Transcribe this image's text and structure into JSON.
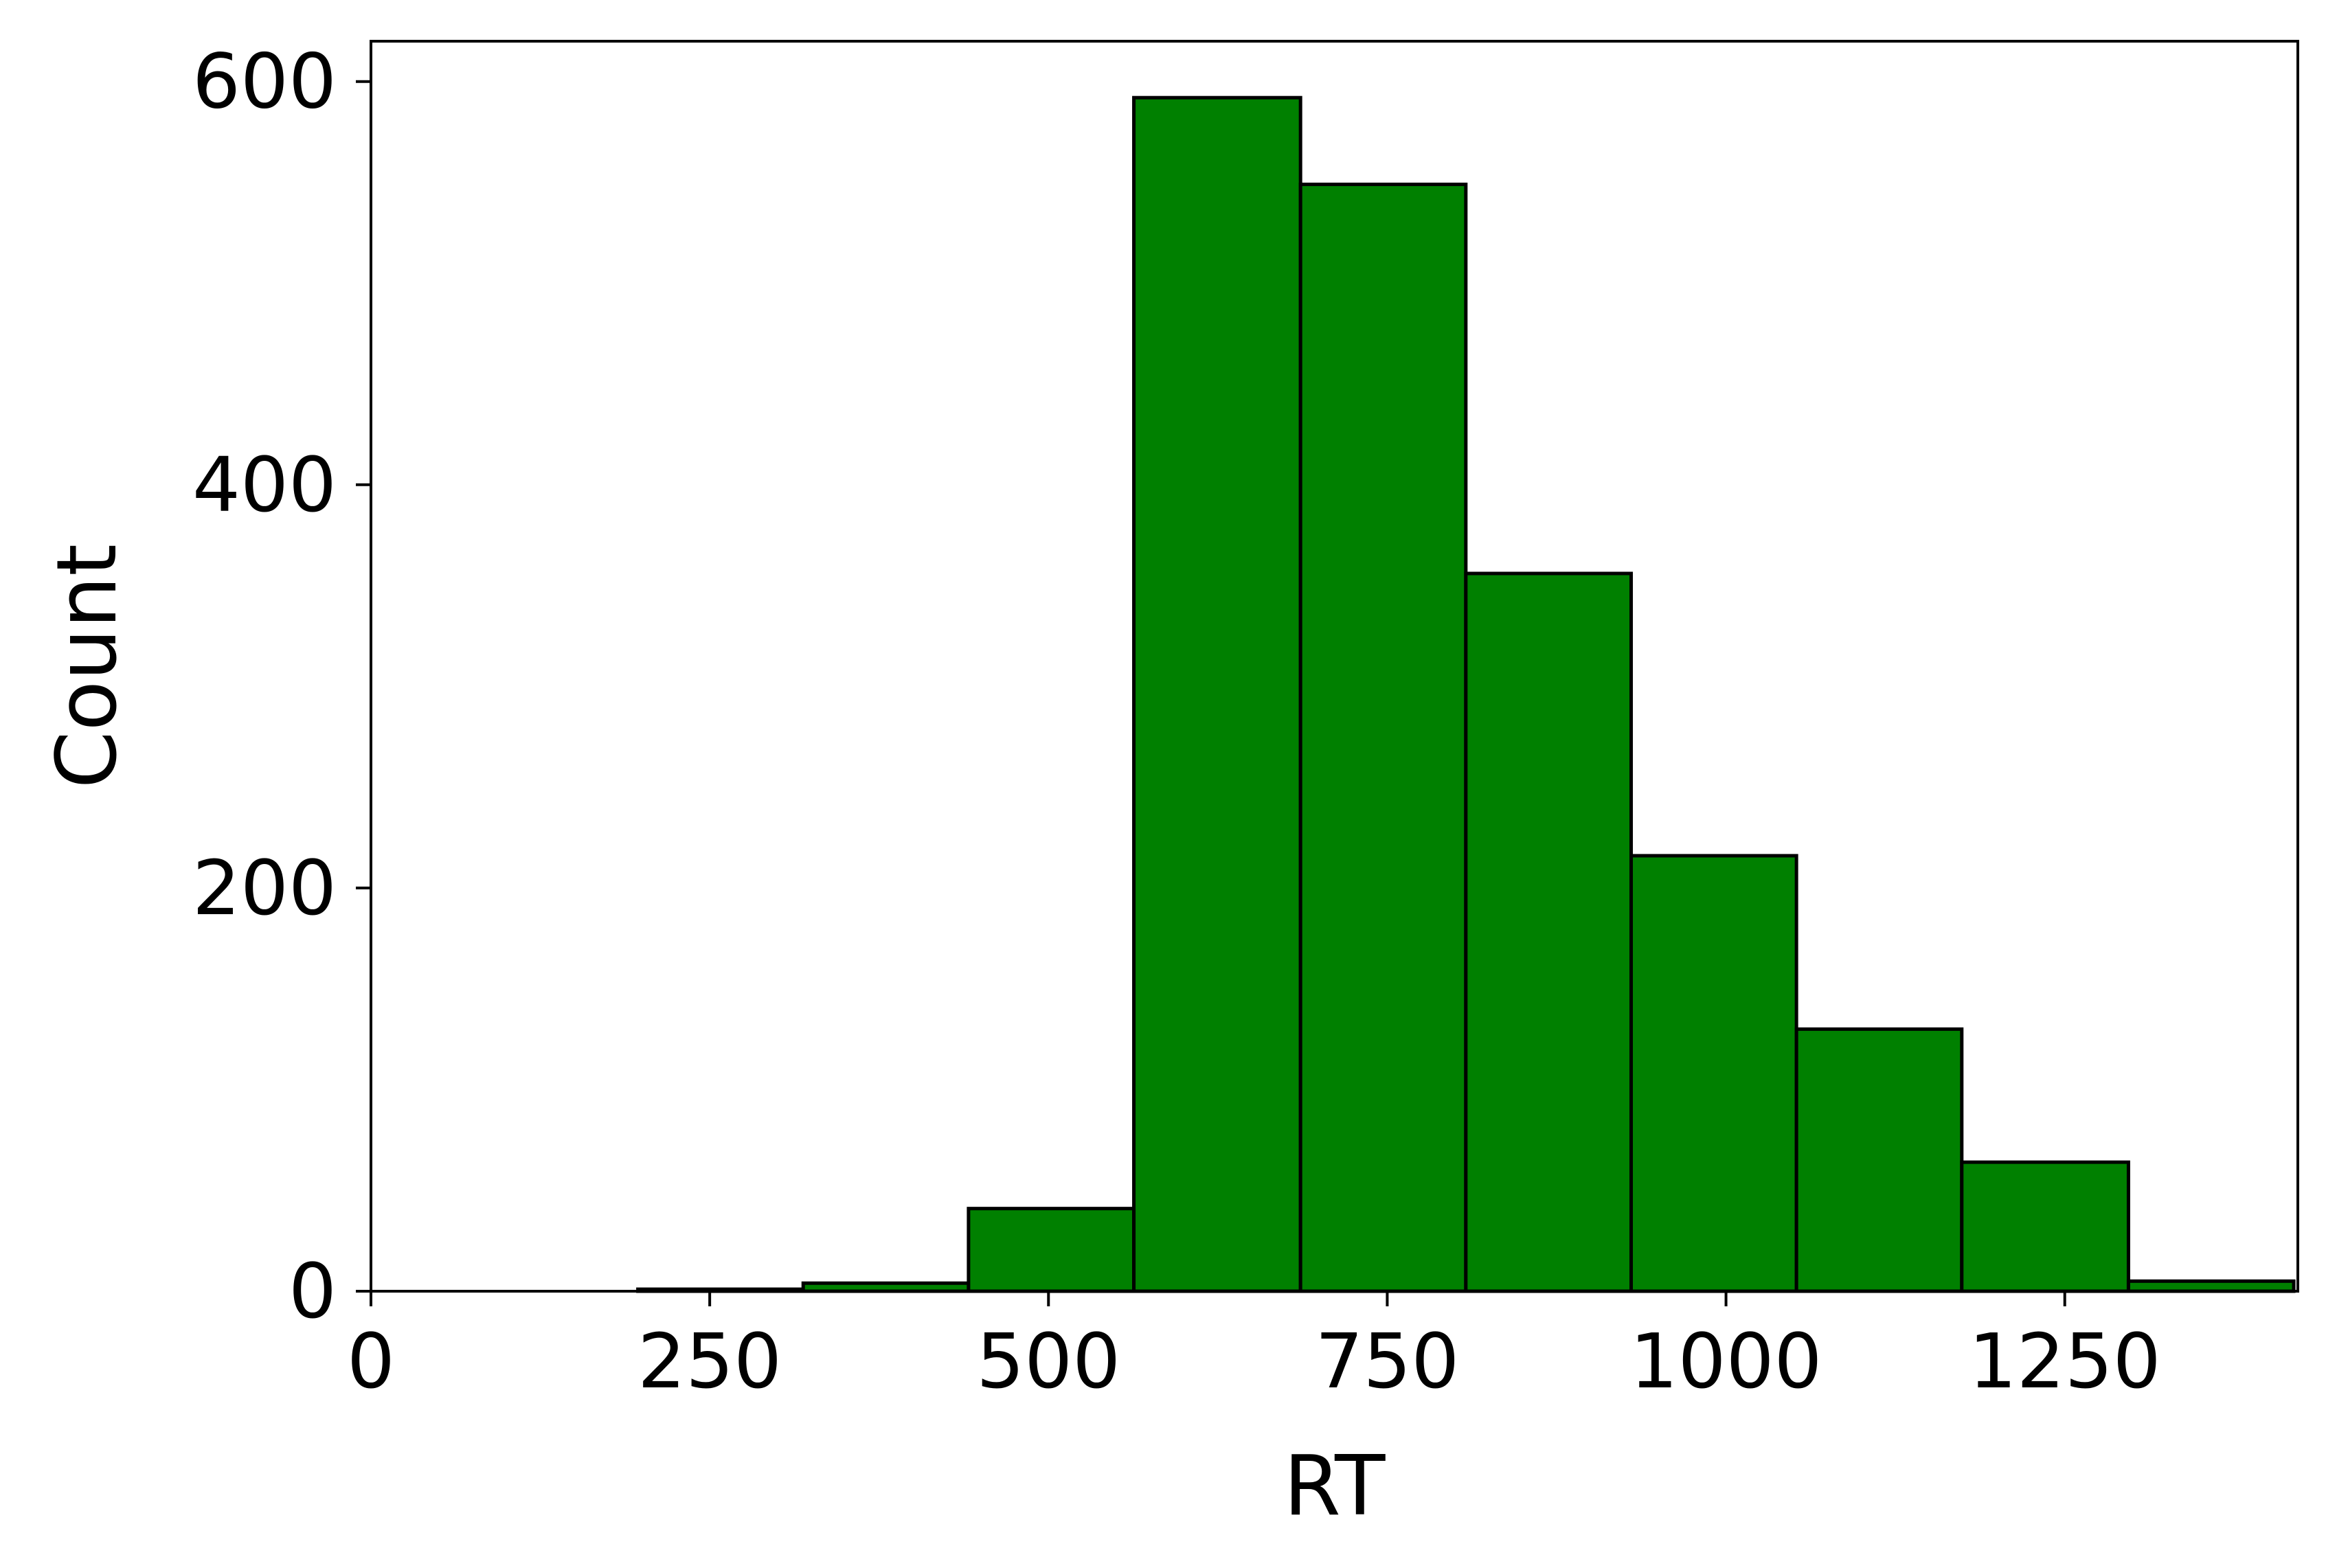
{
  "chart_data": {
    "type": "bar",
    "subtype": "histogram",
    "xlabel": "RT",
    "ylabel": "Count",
    "xlim": [
      0,
      1422
    ],
    "ylim": [
      0,
      620
    ],
    "xticks": [
      0,
      250,
      500,
      750,
      1000,
      1250
    ],
    "yticks": [
      0,
      200,
      400,
      600
    ],
    "grid": false,
    "legend": "none",
    "bins": [
      {
        "x0": 197,
        "x1": 319,
        "count": 1
      },
      {
        "x0": 319,
        "x1": 441,
        "count": 4
      },
      {
        "x0": 441,
        "x1": 563,
        "count": 41
      },
      {
        "x0": 563,
        "x1": 686,
        "count": 592
      },
      {
        "x0": 686,
        "x1": 808,
        "count": 549
      },
      {
        "x0": 808,
        "x1": 930,
        "count": 356
      },
      {
        "x0": 930,
        "x1": 1052,
        "count": 216
      },
      {
        "x0": 1052,
        "x1": 1174,
        "count": 130
      },
      {
        "x0": 1174,
        "x1": 1297,
        "count": 64
      },
      {
        "x0": 1297,
        "x1": 1419,
        "count": 5
      }
    ],
    "colors": {
      "bar_fill": "#008000",
      "bar_edge": "#000000",
      "axes": "#000000"
    }
  }
}
